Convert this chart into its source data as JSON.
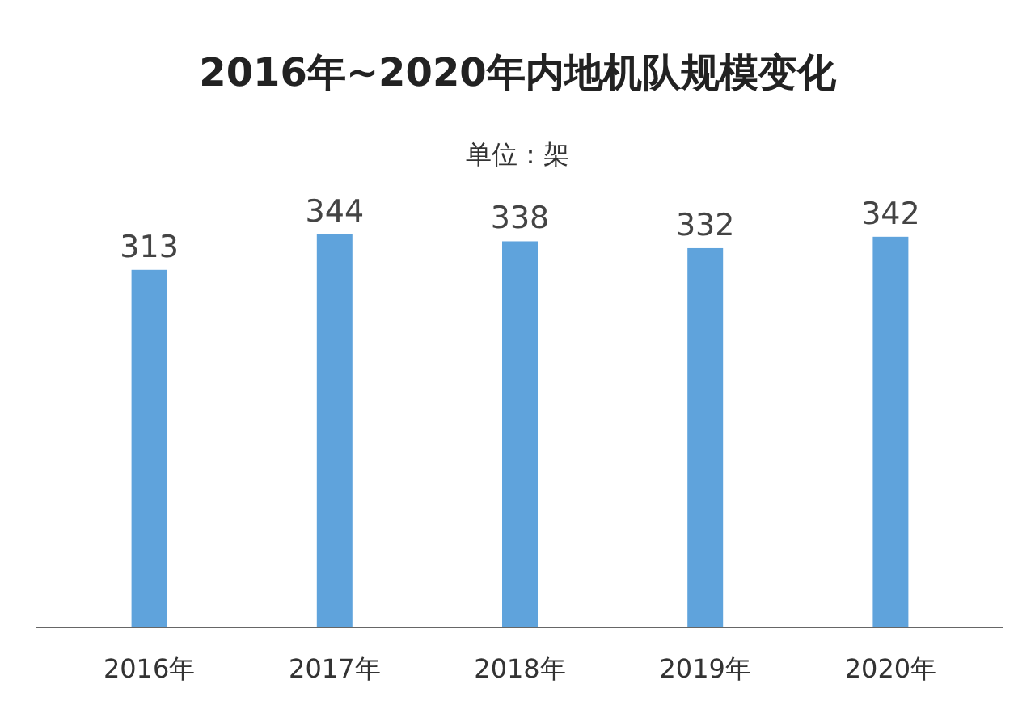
{
  "chart_data": {
    "type": "bar",
    "title": "2016年~2020年内地机队规模变化",
    "subtitle": "单位：架",
    "categories": [
      "2016年",
      "2017年",
      "2018年",
      "2019年",
      "2020年"
    ],
    "values": [
      313,
      344,
      338,
      332,
      342
    ],
    "color": "#5fa3dc",
    "data_labels": true
  }
}
